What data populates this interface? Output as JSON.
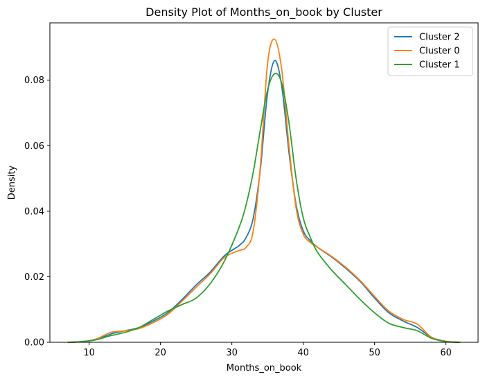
{
  "chart_data": {
    "type": "line",
    "title": "Density Plot of Months_on_book by Cluster",
    "xlabel": "Months_on_book",
    "ylabel": "Density",
    "xlim": [
      4.5,
      64.5
    ],
    "ylim": [
      0,
      0.0975
    ],
    "xticks": [
      10,
      20,
      30,
      40,
      50,
      60
    ],
    "yticks": [
      0.0,
      0.02,
      0.04,
      0.06,
      0.08
    ],
    "ytick_labels": [
      "0.00",
      "0.02",
      "0.04",
      "0.06",
      "0.08"
    ],
    "legend_position": "top-right",
    "grid": false,
    "series": [
      {
        "name": "Cluster 2",
        "color": "#1f77b4",
        "points": [
          [
            7,
            0
          ],
          [
            9,
            0.0002
          ],
          [
            11,
            0.0008
          ],
          [
            13,
            0.0025
          ],
          [
            15,
            0.0035
          ],
          [
            17,
            0.0045
          ],
          [
            19,
            0.0065
          ],
          [
            21,
            0.009
          ],
          [
            23,
            0.013
          ],
          [
            25,
            0.0175
          ],
          [
            27,
            0.0215
          ],
          [
            29,
            0.0265
          ],
          [
            31,
            0.0295
          ],
          [
            32,
            0.032
          ],
          [
            33,
            0.038
          ],
          [
            34,
            0.053
          ],
          [
            35,
            0.076
          ],
          [
            36,
            0.086
          ],
          [
            37,
            0.078
          ],
          [
            38,
            0.058
          ],
          [
            39,
            0.042
          ],
          [
            40,
            0.034
          ],
          [
            41,
            0.031
          ],
          [
            42,
            0.029
          ],
          [
            44,
            0.026
          ],
          [
            46,
            0.0225
          ],
          [
            48,
            0.0185
          ],
          [
            50,
            0.0135
          ],
          [
            52,
            0.009
          ],
          [
            54,
            0.0065
          ],
          [
            56,
            0.0045
          ],
          [
            58,
            0.0015
          ],
          [
            60,
            0.0003
          ],
          [
            62,
            0
          ]
        ]
      },
      {
        "name": "Cluster 0",
        "color": "#ff7f0e",
        "points": [
          [
            7,
            0
          ],
          [
            9,
            0.0002
          ],
          [
            11,
            0.001
          ],
          [
            13,
            0.003
          ],
          [
            15,
            0.0035
          ],
          [
            17,
            0.0042
          ],
          [
            19,
            0.006
          ],
          [
            21,
            0.0085
          ],
          [
            23,
            0.0125
          ],
          [
            25,
            0.0168
          ],
          [
            27,
            0.021
          ],
          [
            29,
            0.026
          ],
          [
            31,
            0.028
          ],
          [
            32,
            0.029
          ],
          [
            33,
            0.034
          ],
          [
            34,
            0.054
          ],
          [
            35,
            0.085
          ],
          [
            36,
            0.0925
          ],
          [
            37,
            0.083
          ],
          [
            38,
            0.06
          ],
          [
            39,
            0.041
          ],
          [
            40,
            0.033
          ],
          [
            41,
            0.0305
          ],
          [
            42,
            0.029
          ],
          [
            44,
            0.0262
          ],
          [
            46,
            0.0228
          ],
          [
            48,
            0.0188
          ],
          [
            50,
            0.014
          ],
          [
            52,
            0.0095
          ],
          [
            54,
            0.007
          ],
          [
            56,
            0.0055
          ],
          [
            58,
            0.0015
          ],
          [
            60,
            0.0003
          ],
          [
            62,
            0
          ]
        ]
      },
      {
        "name": "Cluster 1",
        "color": "#2ca02c",
        "points": [
          [
            7,
            0
          ],
          [
            9,
            0.0002
          ],
          [
            11,
            0.0008
          ],
          [
            13,
            0.002
          ],
          [
            15,
            0.003
          ],
          [
            17,
            0.0045
          ],
          [
            19,
            0.007
          ],
          [
            21,
            0.0095
          ],
          [
            23,
            0.0115
          ],
          [
            25,
            0.0135
          ],
          [
            27,
            0.018
          ],
          [
            29,
            0.025
          ],
          [
            31,
            0.035
          ],
          [
            32,
            0.042
          ],
          [
            33,
            0.052
          ],
          [
            34,
            0.065
          ],
          [
            35,
            0.077
          ],
          [
            36,
            0.082
          ],
          [
            37,
            0.079
          ],
          [
            38,
            0.067
          ],
          [
            39,
            0.05
          ],
          [
            40,
            0.038
          ],
          [
            41,
            0.032
          ],
          [
            42,
            0.0275
          ],
          [
            44,
            0.022
          ],
          [
            46,
            0.0175
          ],
          [
            48,
            0.013
          ],
          [
            50,
            0.009
          ],
          [
            52,
            0.0058
          ],
          [
            54,
            0.0045
          ],
          [
            56,
            0.0035
          ],
          [
            58,
            0.0012
          ],
          [
            60,
            0.0002
          ],
          [
            62,
            0
          ]
        ]
      }
    ]
  }
}
